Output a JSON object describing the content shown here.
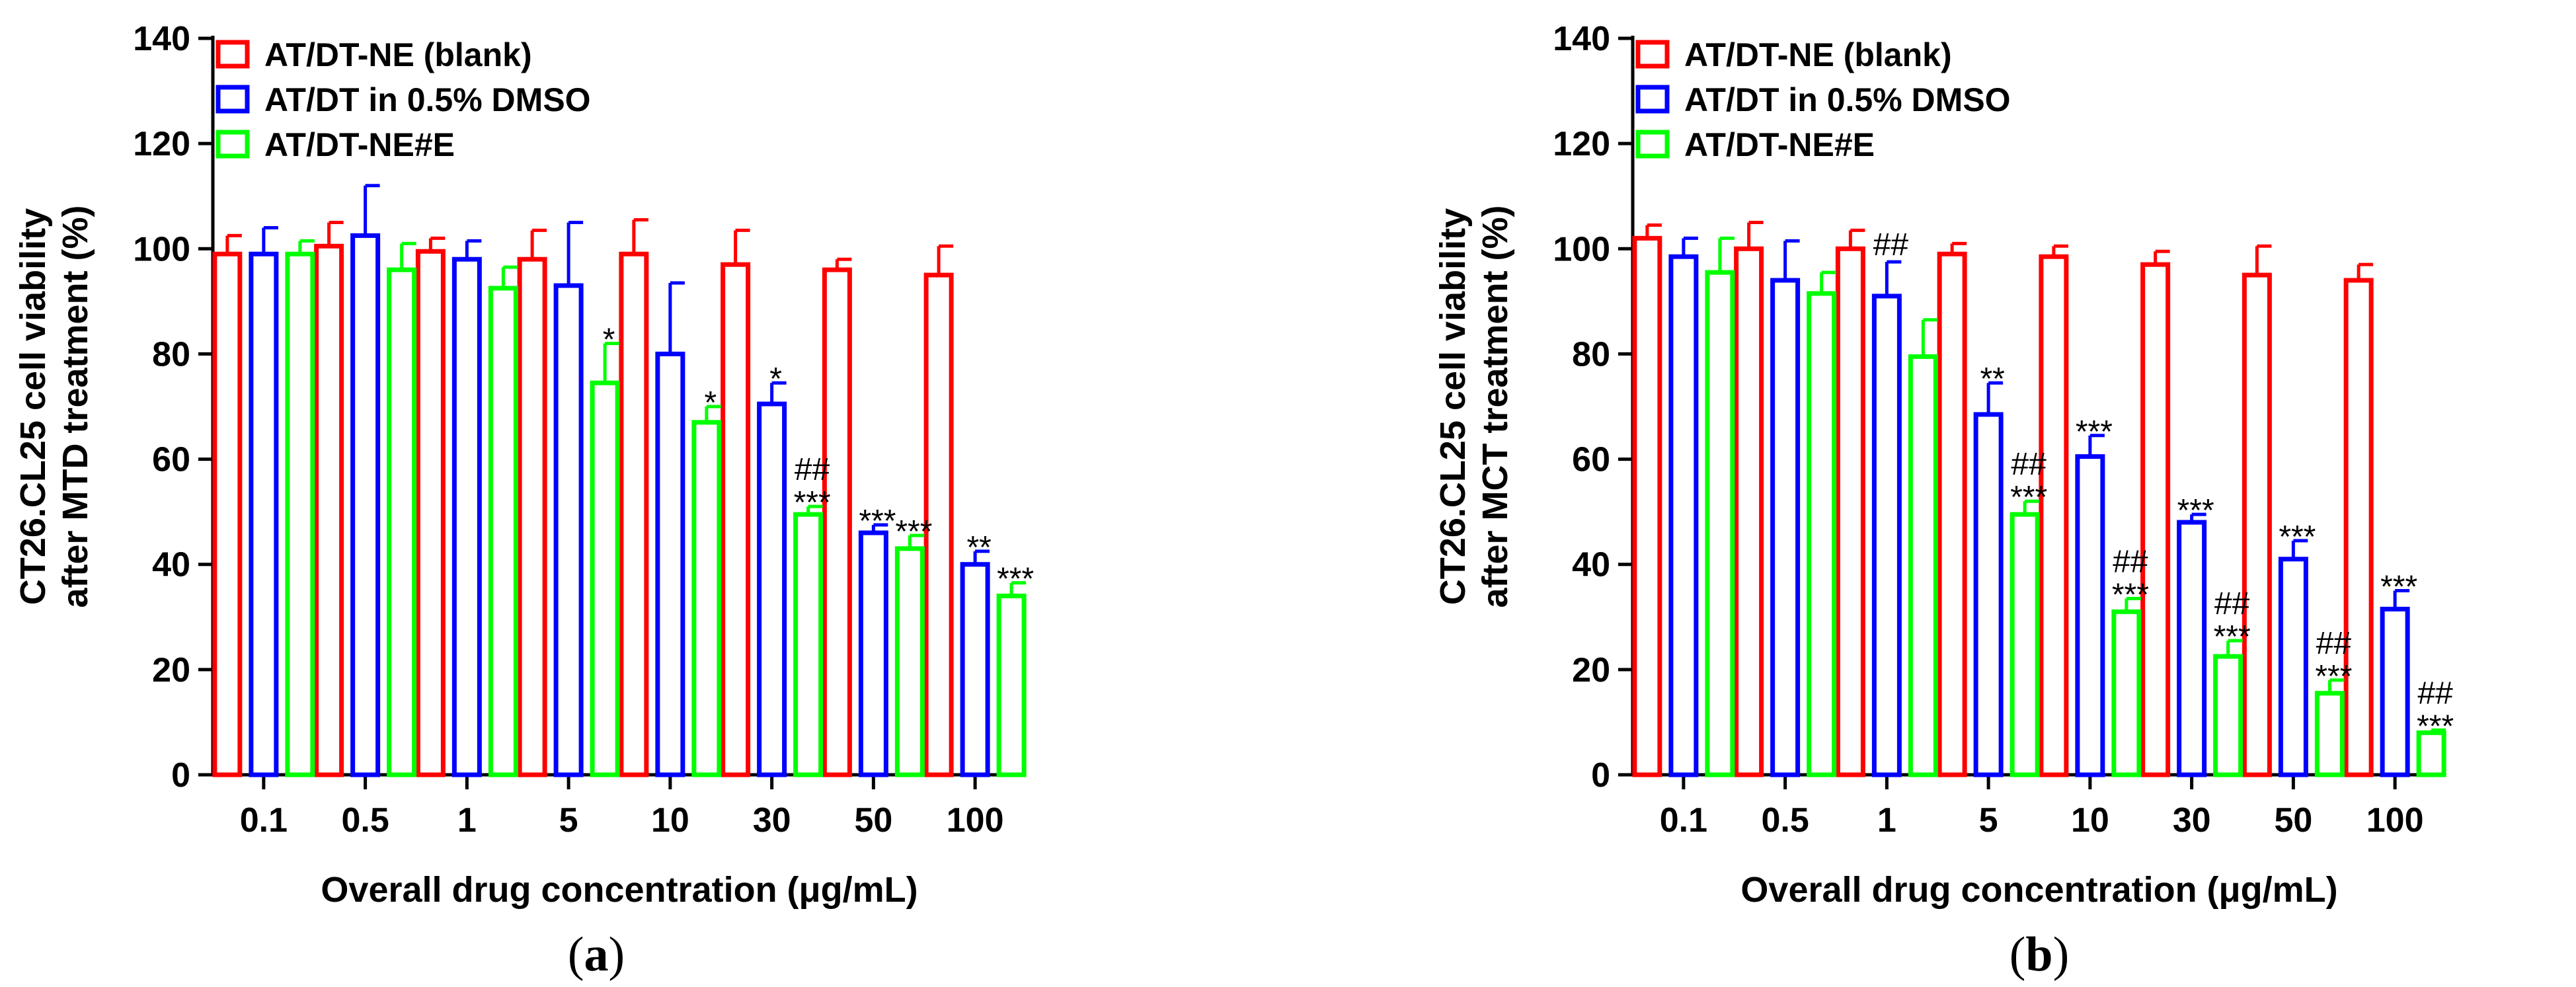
{
  "figure": {
    "legend": [
      {
        "label": "AT/DT-NE (blank)",
        "color": "#ff0000"
      },
      {
        "label": "AT/DT in 0.5% DMSO",
        "color": "#0000ff"
      },
      {
        "label": "AT/DT-NE#E",
        "color": "#00ff00"
      }
    ]
  },
  "chart_data": [
    {
      "type": "bar",
      "panel_label": "(a)",
      "title": "",
      "xlabel": "Overall drug concentration (μg/mL)",
      "ylabel_lines": [
        "CT26.CL25 cell viability",
        "after MTD treatment (%)"
      ],
      "ylim": [
        0,
        140
      ],
      "yticks": [
        0,
        20,
        40,
        60,
        80,
        100,
        120,
        140
      ],
      "categories": [
        "0.1",
        "0.5",
        "1",
        "5",
        "10",
        "30",
        "50",
        "100"
      ],
      "series": [
        {
          "name": "AT/DT-NE (blank)",
          "color": "#ff0000",
          "values": [
            99,
            100.5,
            99.5,
            98,
            99,
            97,
            96,
            95
          ],
          "errors": [
            3.5,
            4.5,
            2.5,
            5.5,
            6.5,
            6.5,
            2,
            5.5
          ],
          "annotations": [
            "",
            "",
            "",
            "",
            "",
            "",
            "",
            ""
          ]
        },
        {
          "name": "AT/DT in 0.5% DMSO",
          "color": "#0000ff",
          "values": [
            99,
            102.5,
            98,
            93,
            80,
            70.5,
            46,
            40
          ],
          "errors": [
            5,
            9.5,
            3.5,
            12,
            13.5,
            4,
            1.5,
            2.5
          ],
          "annotations": [
            "",
            "",
            "",
            "",
            "",
            "*",
            "***",
            "**"
          ]
        },
        {
          "name": "AT/DT-NE#E",
          "color": "#00ff00",
          "values": [
            99,
            96,
            92.5,
            74.5,
            67,
            49.5,
            43,
            34
          ],
          "errors": [
            2.5,
            5,
            4,
            7.5,
            3,
            1.5,
            2.5,
            2.5
          ],
          "annotations": [
            "",
            "",
            "",
            "*",
            "*",
            "##\n***",
            "***",
            "***"
          ]
        }
      ]
    },
    {
      "type": "bar",
      "panel_label": "(b)",
      "title": "",
      "xlabel": "Overall drug concentration (μg/mL)",
      "ylabel_lines": [
        "CT26.CL25 cell viability",
        "after MCT treatment (%)"
      ],
      "ylim": [
        0,
        140
      ],
      "yticks": [
        0,
        20,
        40,
        60,
        80,
        100,
        120,
        140
      ],
      "categories": [
        "0.1",
        "0.5",
        "1",
        "5",
        "10",
        "30",
        "50",
        "100"
      ],
      "series": [
        {
          "name": "AT/DT-NE (blank)",
          "color": "#ff0000",
          "values": [
            102,
            100,
            100,
            99,
            98.5,
            97,
            95,
            94
          ],
          "errors": [
            2.5,
            5,
            3.5,
            2,
            2,
            2.5,
            5.5,
            3
          ],
          "annotations": [
            "",
            "",
            "",
            "",
            "",
            "",
            "",
            ""
          ]
        },
        {
          "name": "AT/DT in 0.5% DMSO",
          "color": "#0000ff",
          "values": [
            98.5,
            94,
            91,
            68.5,
            60.5,
            48,
            41,
            31.5
          ],
          "errors": [
            3.5,
            7.5,
            6.5,
            6,
            4,
            1.5,
            3.5,
            3.5
          ],
          "annotations": [
            "",
            "",
            "##",
            "**",
            "***",
            "***",
            "***",
            "***"
          ]
        },
        {
          "name": "AT/DT-NE#E",
          "color": "#00ff00",
          "values": [
            95.5,
            91.5,
            79.5,
            49.5,
            31,
            22.5,
            15.5,
            8
          ],
          "errors": [
            6.5,
            4,
            7,
            2.5,
            2.5,
            3,
            2.5,
            0.5
          ],
          "annotations": [
            "",
            "",
            "",
            "##\n***",
            "##\n***",
            "##\n***",
            "##\n***",
            "##\n***"
          ]
        }
      ]
    }
  ]
}
